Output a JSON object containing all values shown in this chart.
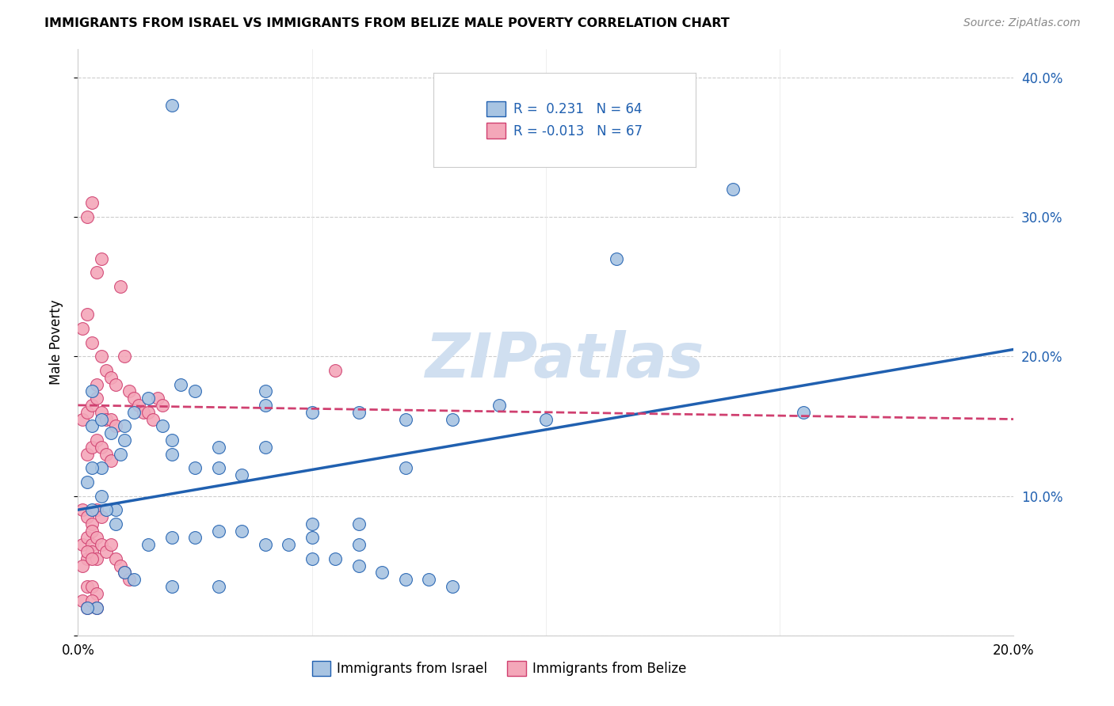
{
  "title": "IMMIGRANTS FROM ISRAEL VS IMMIGRANTS FROM BELIZE MALE POVERTY CORRELATION CHART",
  "source": "Source: ZipAtlas.com",
  "ylabel": "Male Poverty",
  "x_min": 0.0,
  "x_max": 0.2,
  "y_min": 0.0,
  "y_max": 0.42,
  "israel_color": "#a8c4e2",
  "belize_color": "#f4a7b9",
  "israel_line_color": "#2060b0",
  "belize_line_color": "#d04070",
  "israel_R": 0.231,
  "israel_N": 64,
  "belize_R": -0.013,
  "belize_N": 67,
  "watermark": "ZIPatlas",
  "watermark_color": "#d0dff0",
  "israel_line_y0": 0.09,
  "israel_line_y1": 0.205,
  "belize_line_y0": 0.165,
  "belize_line_y1": 0.155,
  "israel_scatter_x": [
    0.02,
    0.005,
    0.003,
    0.003,
    0.002,
    0.005,
    0.003,
    0.008,
    0.01,
    0.012,
    0.015,
    0.018,
    0.022,
    0.025,
    0.04,
    0.05,
    0.06,
    0.07,
    0.08,
    0.09,
    0.1,
    0.115,
    0.05,
    0.06,
    0.01,
    0.02,
    0.03,
    0.04,
    0.05,
    0.06,
    0.02,
    0.025,
    0.03,
    0.035,
    0.015,
    0.02,
    0.025,
    0.03,
    0.035,
    0.04,
    0.045,
    0.01,
    0.012,
    0.05,
    0.055,
    0.06,
    0.065,
    0.07,
    0.075,
    0.08,
    0.02,
    0.03,
    0.14,
    0.155,
    0.008,
    0.006,
    0.004,
    0.002,
    0.003,
    0.005,
    0.007,
    0.009,
    0.04,
    0.07
  ],
  "israel_scatter_y": [
    0.38,
    0.12,
    0.15,
    0.12,
    0.11,
    0.1,
    0.09,
    0.08,
    0.14,
    0.16,
    0.17,
    0.15,
    0.18,
    0.175,
    0.165,
    0.16,
    0.16,
    0.155,
    0.155,
    0.165,
    0.155,
    0.27,
    0.07,
    0.065,
    0.15,
    0.14,
    0.135,
    0.135,
    0.08,
    0.08,
    0.13,
    0.12,
    0.12,
    0.115,
    0.065,
    0.07,
    0.07,
    0.075,
    0.075,
    0.065,
    0.065,
    0.045,
    0.04,
    0.055,
    0.055,
    0.05,
    0.045,
    0.04,
    0.04,
    0.035,
    0.035,
    0.035,
    0.32,
    0.16,
    0.09,
    0.09,
    0.02,
    0.02,
    0.175,
    0.155,
    0.145,
    0.13,
    0.175,
    0.12
  ],
  "belize_scatter_x": [
    0.001,
    0.002,
    0.003,
    0.004,
    0.005,
    0.006,
    0.007,
    0.008,
    0.002,
    0.003,
    0.004,
    0.005,
    0.001,
    0.002,
    0.003,
    0.004,
    0.005,
    0.006,
    0.007,
    0.008,
    0.009,
    0.01,
    0.011,
    0.012,
    0.013,
    0.014,
    0.015,
    0.016,
    0.017,
    0.018,
    0.002,
    0.003,
    0.004,
    0.005,
    0.006,
    0.007,
    0.001,
    0.002,
    0.003,
    0.004,
    0.005,
    0.001,
    0.002,
    0.003,
    0.002,
    0.003,
    0.004,
    0.001,
    0.002,
    0.003,
    0.055,
    0.003,
    0.004,
    0.005,
    0.006,
    0.007,
    0.008,
    0.009,
    0.01,
    0.011,
    0.002,
    0.003,
    0.004,
    0.001,
    0.002,
    0.003,
    0.004
  ],
  "belize_scatter_y": [
    0.155,
    0.16,
    0.165,
    0.17,
    0.16,
    0.155,
    0.155,
    0.15,
    0.3,
    0.31,
    0.26,
    0.27,
    0.22,
    0.23,
    0.21,
    0.18,
    0.2,
    0.19,
    0.185,
    0.18,
    0.25,
    0.2,
    0.175,
    0.17,
    0.165,
    0.16,
    0.16,
    0.155,
    0.17,
    0.165,
    0.13,
    0.135,
    0.14,
    0.135,
    0.13,
    0.125,
    0.09,
    0.085,
    0.08,
    0.09,
    0.085,
    0.065,
    0.07,
    0.065,
    0.055,
    0.06,
    0.055,
    0.05,
    0.06,
    0.055,
    0.19,
    0.075,
    0.07,
    0.065,
    0.06,
    0.065,
    0.055,
    0.05,
    0.045,
    0.04,
    0.035,
    0.035,
    0.03,
    0.025,
    0.02,
    0.025,
    0.02
  ]
}
